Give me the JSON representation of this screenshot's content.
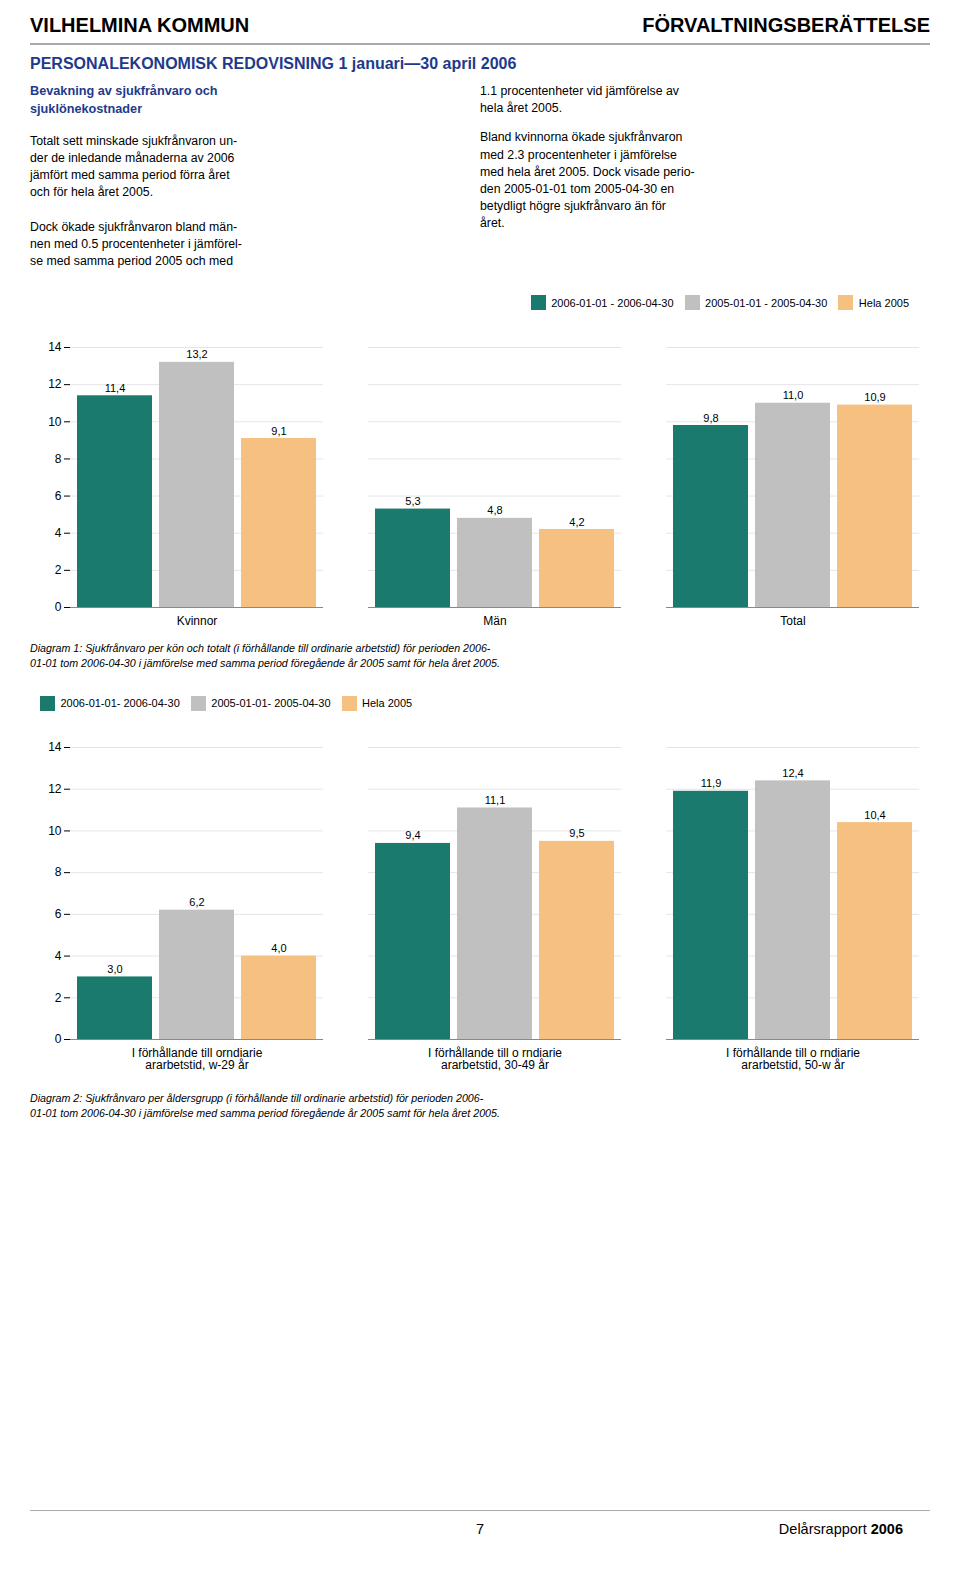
{
  "page": {
    "header_left": "VILHELMINA KOMMUN",
    "header_right": "FÖRVALTNINGSBERÄTTELSE",
    "section_title": "PERSONALEKONOMISK REDOVISNING 1 januari—30 april 2006",
    "color": "#1e3a8c",
    "text_title": "Bevakning av sjukfrånvaro och\nsjuklönekostnader",
    "text_left": "Totalt sett minskade sjukfrånvaron un-\nder de inledande månaderna av 2006\njämfört med samma period förra året\noch för hela året 2005.\n\nDock ökade sjukfrånvaron bland män-\nnen med 0.5 procentenheter i jämförel-\nse med samma period 2005 och med",
    "text_right": [
      "1.1 procentenheter vid jämförelse av\nhela året 2005.",
      "Bland kvinnorna ökade sjukfrånvaron\nmed 2.3 procentenheter i jämförelse\nmed hela året 2005. Dock visade perio-\nden 2005-01-01 tom 2005-04-30 en\nbetydligt högre sjukfrånvaro än för\nåret."
    ],
    "footer_page": "7",
    "footer_right": [
      "Delårsrapport ",
      "2006"
    ]
  },
  "chart_data": [
    {
      "type": "bar",
      "categories": [
        "Kvinnor",
        "Män",
        "Total"
      ],
      "series": [
        {
          "name": "2006-01-01 - 2006-04-30",
          "color": "#1a7a6e",
          "values": [
            11.4,
            5.3,
            9.8
          ],
          "value_labels": [
            "11,4",
            "5,3",
            "9,8"
          ]
        },
        {
          "name": "2005-01-01 - 2005-04-30",
          "color": "#c0c0c0",
          "values": [
            13.2,
            4.8,
            11.0
          ],
          "value_labels": [
            "13,2",
            "4,8",
            "11,0"
          ]
        },
        {
          "name": "Hela 2005",
          "color": "#f5c080",
          "values": [
            9.1,
            4.2,
            10.9
          ],
          "value_labels": [
            "9,1",
            "4,2",
            "10,9"
          ]
        }
      ],
      "ylim": [
        0,
        14
      ],
      "yticks": [
        0,
        2,
        4,
        6,
        8,
        10,
        12,
        14
      ],
      "grid": true,
      "legend": "upper right",
      "data_labels": true,
      "annotations": [
        "Diagram 1: Sjukfrånvaro per kön och totalt (i förhållande till ordinarie arbetstid) för perioden 2006-\n01-01 tom 2006-04-30 i jämförelse med samma period föregående år 2005 samt för hela året 2005."
      ]
    },
    {
      "type": "bar",
      "categories": [
        "I förhållande till orndiarie\nararbetstid, w-29 år",
        "I förhållande till o rndiarie\nararbetstid, 30-49 år",
        "I förhållande till o rndiarie\nararbetstid, 50-w år"
      ],
      "series": [
        {
          "name": "2006-01-01- 2006-04-30",
          "color": "#1a7a6e",
          "values": [
            3.0,
            9.4,
            11.9
          ],
          "value_labels": [
            "3,0",
            "9,4",
            "11,9"
          ]
        },
        {
          "name": "2005-01-01- 2005-04-30",
          "color": "#c0c0c0",
          "values": [
            6.2,
            11.1,
            12.4
          ],
          "value_labels": [
            "6,2",
            "11,1",
            "12,4"
          ]
        },
        {
          "name": "Hela 2005",
          "color": "#f5c080",
          "values": [
            4.0,
            9.5,
            10.4
          ],
          "value_labels": [
            "4,0",
            "9,5",
            "10,4"
          ]
        }
      ],
      "ylim": [
        0,
        14
      ],
      "yticks": [
        0,
        2,
        4,
        6,
        8,
        10,
        12,
        14
      ],
      "grid": true,
      "legend": "upper left",
      "data_labels": true,
      "annotations": [
        "Diagram 2: Sjukfrånvaro per åldersgrupp (i förhållande till ordinarie arbetstid) för perioden 2006-\n01-01 tom 2006-04-30 i jämförelse med samma period föregående år 2005 samt för hela året 2005."
      ]
    }
  ]
}
